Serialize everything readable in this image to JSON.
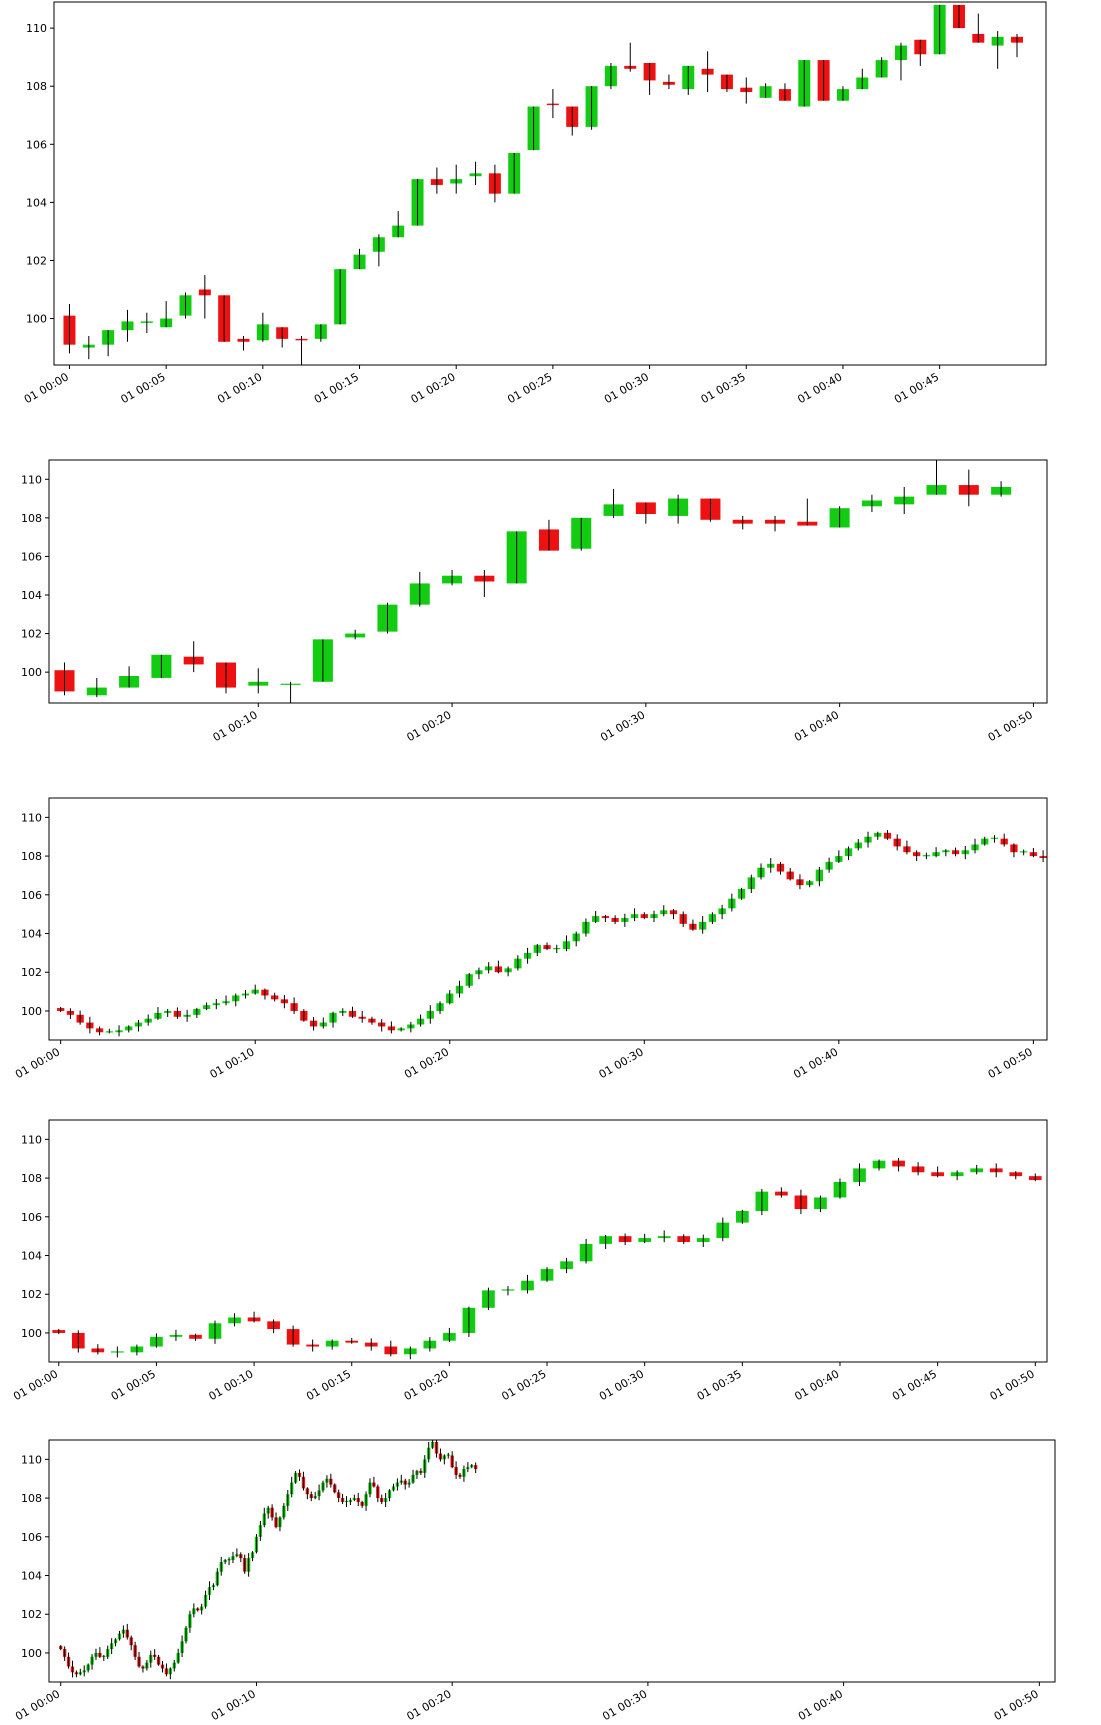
{
  "colors": {
    "up": "#11cc11",
    "down": "#ee1111",
    "wick": "#000000",
    "frame": "#000000"
  },
  "chart_data": [
    {
      "type": "candlestick",
      "interval_minutes": 1,
      "ylim": [
        98.4,
        110.9
      ],
      "yticks": [
        100,
        102,
        104,
        106,
        108,
        110
      ],
      "x_ticks": [
        "01 00:00",
        "01 00:05",
        "01 00:10",
        "01 00:15",
        "01 00:20",
        "01 00:25",
        "01 00:30",
        "01 00:35",
        "01 00:40",
        "01 00:45"
      ],
      "x_tick_minutes": [
        0,
        5,
        10,
        15,
        20,
        25,
        30,
        35,
        40,
        45
      ],
      "xlim_minutes": [
        -0.8,
        50.5
      ],
      "candles": [
        {
          "t": 0,
          "o": 100.1,
          "h": 100.5,
          "l": 98.8,
          "c": 99.1
        },
        {
          "t": 1,
          "o": 99.0,
          "h": 99.4,
          "l": 98.6,
          "c": 99.1
        },
        {
          "t": 2,
          "o": 99.1,
          "h": 99.6,
          "l": 98.7,
          "c": 99.6
        },
        {
          "t": 3,
          "o": 99.6,
          "h": 100.3,
          "l": 99.2,
          "c": 99.9
        },
        {
          "t": 4,
          "o": 99.85,
          "h": 100.2,
          "l": 99.5,
          "c": 99.9
        },
        {
          "t": 5,
          "o": 99.7,
          "h": 100.6,
          "l": 99.7,
          "c": 100.0
        },
        {
          "t": 6,
          "o": 100.1,
          "h": 100.9,
          "l": 100.0,
          "c": 100.8
        },
        {
          "t": 7,
          "o": 101.0,
          "h": 101.5,
          "l": 100.0,
          "c": 100.8
        },
        {
          "t": 8,
          "o": 100.8,
          "h": 100.8,
          "l": 99.2,
          "c": 99.2
        },
        {
          "t": 9,
          "o": 99.3,
          "h": 99.4,
          "l": 98.9,
          "c": 99.2
        },
        {
          "t": 10,
          "o": 99.25,
          "h": 100.2,
          "l": 99.2,
          "c": 99.8
        },
        {
          "t": 11,
          "o": 99.7,
          "h": 99.7,
          "l": 99.0,
          "c": 99.3
        },
        {
          "t": 12,
          "o": 99.3,
          "h": 99.4,
          "l": 98.3,
          "c": 99.25
        },
        {
          "t": 13,
          "o": 99.3,
          "h": 99.8,
          "l": 99.2,
          "c": 99.8
        },
        {
          "t": 14,
          "o": 99.8,
          "h": 101.7,
          "l": 99.8,
          "c": 101.7
        },
        {
          "t": 15,
          "o": 101.7,
          "h": 102.4,
          "l": 101.7,
          "c": 102.2
        },
        {
          "t": 16,
          "o": 102.3,
          "h": 102.9,
          "l": 101.8,
          "c": 102.8
        },
        {
          "t": 17,
          "o": 102.8,
          "h": 103.7,
          "l": 102.8,
          "c": 103.2
        },
        {
          "t": 18,
          "o": 103.2,
          "h": 104.8,
          "l": 103.2,
          "c": 104.8
        },
        {
          "t": 19,
          "o": 104.8,
          "h": 105.2,
          "l": 104.3,
          "c": 104.6
        },
        {
          "t": 20,
          "o": 104.65,
          "h": 105.3,
          "l": 104.3,
          "c": 104.8
        },
        {
          "t": 21,
          "o": 104.9,
          "h": 105.4,
          "l": 104.6,
          "c": 105.0
        },
        {
          "t": 22,
          "o": 105.0,
          "h": 105.3,
          "l": 104.0,
          "c": 104.3
        },
        {
          "t": 23,
          "o": 104.3,
          "h": 105.7,
          "l": 104.3,
          "c": 105.7
        },
        {
          "t": 24,
          "o": 105.8,
          "h": 107.3,
          "l": 105.8,
          "c": 107.3
        },
        {
          "t": 25,
          "o": 107.4,
          "h": 107.9,
          "l": 106.9,
          "c": 107.35
        },
        {
          "t": 26,
          "o": 107.3,
          "h": 107.3,
          "l": 106.3,
          "c": 106.6
        },
        {
          "t": 27,
          "o": 106.6,
          "h": 108.0,
          "l": 106.5,
          "c": 108.0
        },
        {
          "t": 28,
          "o": 108.0,
          "h": 108.8,
          "l": 107.9,
          "c": 108.7
        },
        {
          "t": 29,
          "o": 108.7,
          "h": 109.5,
          "l": 108.5,
          "c": 108.6
        },
        {
          "t": 30,
          "o": 108.8,
          "h": 108.8,
          "l": 107.7,
          "c": 108.2
        },
        {
          "t": 31,
          "o": 108.15,
          "h": 108.4,
          "l": 107.9,
          "c": 108.05
        },
        {
          "t": 32,
          "o": 107.9,
          "h": 108.7,
          "l": 107.7,
          "c": 108.7
        },
        {
          "t": 33,
          "o": 108.6,
          "h": 109.2,
          "l": 107.8,
          "c": 108.4
        },
        {
          "t": 34,
          "o": 108.4,
          "h": 108.4,
          "l": 107.8,
          "c": 107.9
        },
        {
          "t": 35,
          "o": 107.95,
          "h": 108.3,
          "l": 107.4,
          "c": 107.8
        },
        {
          "t": 36,
          "o": 107.6,
          "h": 108.1,
          "l": 107.6,
          "c": 108.0
        },
        {
          "t": 37,
          "o": 107.9,
          "h": 108.1,
          "l": 107.5,
          "c": 107.5
        },
        {
          "t": 38,
          "o": 107.3,
          "h": 108.9,
          "l": 107.3,
          "c": 108.9
        },
        {
          "t": 39,
          "o": 108.9,
          "h": 108.9,
          "l": 107.5,
          "c": 107.5
        },
        {
          "t": 40,
          "o": 107.5,
          "h": 108.0,
          "l": 107.5,
          "c": 107.9
        },
        {
          "t": 41,
          "o": 107.9,
          "h": 108.6,
          "l": 107.9,
          "c": 108.3
        },
        {
          "t": 42,
          "o": 108.3,
          "h": 109.0,
          "l": 108.3,
          "c": 108.9
        },
        {
          "t": 43,
          "o": 108.9,
          "h": 109.5,
          "l": 108.2,
          "c": 109.4
        },
        {
          "t": 44,
          "o": 109.6,
          "h": 109.6,
          "l": 108.7,
          "c": 109.1
        },
        {
          "t": 45,
          "o": 109.1,
          "h": 110.8,
          "l": 109.1,
          "c": 110.8
        },
        {
          "t": 46,
          "o": 110.8,
          "h": 110.8,
          "l": 110.0,
          "c": 110.0
        },
        {
          "t": 47,
          "o": 109.8,
          "h": 110.5,
          "l": 109.5,
          "c": 109.5
        },
        {
          "t": 48,
          "o": 109.4,
          "h": 109.9,
          "l": 108.6,
          "c": 109.7
        },
        {
          "t": 49,
          "o": 109.7,
          "h": 109.8,
          "l": 109.0,
          "c": 109.5
        }
      ]
    },
    {
      "type": "candlestick",
      "interval_minutes": 2,
      "ylim": [
        98.4,
        111.0
      ],
      "yticks": [
        100,
        102,
        104,
        106,
        108,
        110
      ],
      "x_ticks": [
        "01 00:10",
        "01 00:20",
        "01 00:30",
        "01 00:40",
        "01 00:50"
      ],
      "x_tick_minutes": [
        10,
        20,
        30,
        40,
        50
      ],
      "xlim_minutes": [
        -0.8,
        50.7
      ],
      "candles": [
        {
          "t": 1,
          "o": 100.1,
          "h": 100.5,
          "l": 98.8,
          "c": 99.0
        },
        {
          "t": 3,
          "o": 98.8,
          "h": 99.7,
          "l": 98.7,
          "c": 99.2
        },
        {
          "t": 5,
          "o": 99.2,
          "h": 100.3,
          "l": 99.2,
          "c": 99.8
        },
        {
          "t": 7,
          "o": 99.7,
          "h": 100.9,
          "l": 99.7,
          "c": 100.9
        },
        {
          "t": 9,
          "o": 100.8,
          "h": 101.6,
          "l": 100.0,
          "c": 100.4
        },
        {
          "t": 11,
          "o": 100.5,
          "h": 100.5,
          "l": 98.9,
          "c": 99.2
        },
        {
          "t": 13,
          "o": 99.3,
          "h": 100.2,
          "l": 98.9,
          "c": 99.5
        },
        {
          "t": 15,
          "o": 99.4,
          "h": 99.5,
          "l": 98.3,
          "c": 99.4
        },
        {
          "t": 17,
          "o": 99.5,
          "h": 101.7,
          "l": 99.5,
          "c": 101.7
        },
        {
          "t": 19,
          "o": 101.8,
          "h": 102.2,
          "l": 101.7,
          "c": 102.0
        },
        {
          "t": 21,
          "o": 102.1,
          "h": 103.6,
          "l": 102.0,
          "c": 103.5
        },
        {
          "t": 23,
          "o": 103.5,
          "h": 105.2,
          "l": 103.4,
          "c": 104.6
        },
        {
          "t": 25,
          "o": 104.6,
          "h": 105.3,
          "l": 104.5,
          "c": 105.0
        },
        {
          "t": 27,
          "o": 105.0,
          "h": 105.3,
          "l": 103.9,
          "c": 104.7
        },
        {
          "t": 29,
          "o": 104.6,
          "h": 107.3,
          "l": 104.6,
          "c": 107.3
        },
        {
          "t": 31,
          "o": 107.4,
          "h": 107.9,
          "l": 106.3,
          "c": 106.3
        },
        {
          "t": 33,
          "o": 106.4,
          "h": 108.0,
          "l": 106.3,
          "c": 108.0
        },
        {
          "t": 35,
          "o": 108.1,
          "h": 109.5,
          "l": 108.0,
          "c": 108.7
        },
        {
          "t": 37,
          "o": 108.8,
          "h": 108.8,
          "l": 107.7,
          "c": 108.2
        },
        {
          "t": 39,
          "o": 108.1,
          "h": 109.2,
          "l": 107.7,
          "c": 109.0
        },
        {
          "t": 41,
          "o": 109.0,
          "h": 109.0,
          "l": 107.8,
          "c": 107.9
        },
        {
          "t": 43,
          "o": 107.9,
          "h": 108.1,
          "l": 107.4,
          "c": 107.7
        },
        {
          "t": 45,
          "o": 107.9,
          "h": 108.1,
          "l": 107.3,
          "c": 107.7
        },
        {
          "t": 47,
          "o": 107.8,
          "h": 109.0,
          "l": 107.6,
          "c": 107.6
        },
        {
          "t": 49,
          "o": 107.5,
          "h": 108.6,
          "l": 107.5,
          "c": 108.5
        },
        {
          "t": 51,
          "o": 108.6,
          "h": 109.2,
          "l": 108.3,
          "c": 108.9
        },
        {
          "t": 53,
          "o": 108.7,
          "h": 109.6,
          "l": 108.2,
          "c": 109.1
        },
        {
          "t": 55,
          "o": 109.2,
          "h": 111.0,
          "l": 109.2,
          "c": 109.7
        },
        {
          "t": 57,
          "o": 109.7,
          "h": 110.5,
          "l": 108.6,
          "c": 109.2
        },
        {
          "t": 59,
          "o": 109.2,
          "h": 109.9,
          "l": 109.1,
          "c": 109.6
        }
      ],
      "time_scale": 0.8333
    },
    {
      "type": "candlestick",
      "interval_minutes": 0.5,
      "ylim": [
        98.5,
        111.0
      ],
      "yticks": [
        100,
        102,
        104,
        106,
        108,
        110
      ],
      "x_ticks": [
        "01 00:00",
        "01 00:10",
        "01 00:20",
        "01 00:30",
        "01 00:40",
        "01 00:50"
      ],
      "x_tick_minutes": [
        0,
        10,
        20,
        30,
        40,
        50
      ],
      "xlim_minutes": [
        -0.6,
        50.7
      ],
      "path": [
        100.0,
        99.8,
        99.4,
        99.1,
        98.9,
        98.9,
        99.0,
        99.2,
        99.4,
        99.6,
        99.9,
        100.0,
        99.7,
        99.8,
        100.1,
        100.3,
        100.4,
        100.5,
        100.8,
        100.9,
        101.1,
        100.8,
        100.6,
        100.4,
        100.0,
        99.5,
        99.2,
        99.4,
        99.9,
        100.0,
        99.7,
        99.6,
        99.4,
        99.2,
        99.0,
        99.1,
        99.3,
        99.6,
        100.0,
        100.4,
        100.9,
        101.3,
        101.9,
        102.1,
        102.3,
        102.0,
        102.2,
        102.7,
        103.0,
        103.4,
        103.2,
        103.2,
        103.6,
        104.0,
        104.6,
        104.9,
        104.8,
        104.6,
        104.8,
        105.0,
        104.8,
        105.0,
        105.2,
        105.0,
        104.5,
        104.2,
        104.6,
        105.0,
        105.3,
        105.8,
        106.3,
        106.9,
        107.4,
        107.6,
        107.2,
        106.8,
        106.5,
        106.7,
        107.3,
        107.7,
        108.0,
        108.4,
        108.7,
        109.0,
        109.2,
        108.9,
        108.5,
        108.2,
        108.0,
        108.0,
        108.2,
        108.3,
        108.1,
        108.3,
        108.6,
        108.9,
        108.9,
        108.6,
        108.2,
        108.2,
        108.0,
        107.9,
        107.8,
        107.8,
        107.9,
        108.0,
        107.8,
        107.6,
        107.4,
        107.8,
        108.4,
        108.8,
        108.5,
        108.0,
        107.7,
        107.8,
        108.0,
        108.3,
        108.6,
        108.8,
        108.9,
        108.9,
        108.8,
        109.0,
        109.5,
        109.8,
        109.4,
        109.1,
        109.5,
        110.2,
        110.9,
        110.6,
        110.1,
        109.8,
        110.0,
        110.3,
        110.1,
        109.7,
        109.3,
        109.5,
        109.8,
        109.7,
        109.5,
        109.5,
        109.5
      ]
    },
    {
      "type": "candlestick",
      "interval_minutes": 1,
      "ylim": [
        98.5,
        111.0
      ],
      "yticks": [
        100,
        102,
        104,
        106,
        108,
        110
      ],
      "x_ticks": [
        "01 00:00",
        "01 00:05",
        "01 00:10",
        "01 00:15",
        "01 00:20",
        "01 00:25",
        "01 00:30",
        "01 00:35",
        "01 00:40",
        "01 00:45",
        "01 00:50"
      ],
      "x_tick_minutes": [
        0,
        5,
        10,
        15,
        20,
        25,
        30,
        35,
        40,
        45,
        50
      ],
      "xlim_minutes": [
        -0.5,
        50.6
      ],
      "path": [
        100.0,
        99.2,
        99.0,
        99.0,
        99.3,
        99.8,
        99.9,
        99.7,
        100.5,
        100.8,
        100.6,
        100.2,
        99.4,
        99.3,
        99.6,
        99.5,
        99.3,
        98.9,
        99.2,
        99.6,
        100.0,
        101.3,
        102.2,
        102.2,
        102.7,
        103.3,
        103.7,
        104.6,
        105.0,
        104.7,
        104.9,
        105.0,
        104.7,
        104.9,
        105.7,
        106.3,
        107.3,
        107.1,
        106.4,
        107.0,
        107.8,
        108.5,
        108.9,
        108.6,
        108.3,
        108.1,
        108.3,
        108.5,
        108.3,
        108.1,
        107.9,
        107.7,
        107.8,
        107.9,
        107.6,
        108.0,
        108.4,
        108.1,
        107.9,
        108.3,
        108.6,
        108.6,
        108.8,
        109.0,
        109.6,
        110.5,
        110.6,
        109.9,
        110.1,
        109.2,
        109.4,
        109.5
      ]
    },
    {
      "type": "candlestick",
      "interval_minutes": 0.2,
      "ylim": [
        98.5,
        111.0
      ],
      "yticks": [
        100,
        102,
        104,
        106,
        108,
        110
      ],
      "x_ticks": [
        "01 00:00",
        "01 00:10",
        "01 00:20",
        "01 00:30",
        "01 00:40",
        "01 00:50"
      ],
      "x_tick_minutes": [
        0,
        10,
        20,
        30,
        40,
        50
      ],
      "xlim_minutes": [
        -0.6,
        50.8
      ],
      "path": [
        100.2,
        99.8,
        99.3,
        99.0,
        98.9,
        99.0,
        99.1,
        99.4,
        99.8,
        100.0,
        99.8,
        99.8,
        100.2,
        100.5,
        100.7,
        101.0,
        101.2,
        100.8,
        100.4,
        99.8,
        99.3,
        99.2,
        99.5,
        99.9,
        99.8,
        99.4,
        99.2,
        98.9,
        99.2,
        99.5,
        100.0,
        100.6,
        101.3,
        102.0,
        102.3,
        102.2,
        102.4,
        103.0,
        103.4,
        103.5,
        104.2,
        104.7,
        104.8,
        104.8,
        105.0,
        105.1,
        104.9,
        104.2,
        104.9,
        105.2,
        106.0,
        106.6,
        107.2,
        107.5,
        107.0,
        106.5,
        107.0,
        107.6,
        108.2,
        108.8,
        109.3,
        109.1,
        108.5,
        108.2,
        108.0,
        108.1,
        108.4,
        108.8,
        109.0,
        108.7,
        108.3,
        108.0,
        107.8,
        107.8,
        107.9,
        108.0,
        107.8,
        107.6,
        108.2,
        108.8,
        108.6,
        108.0,
        107.8,
        108.0,
        108.4,
        108.6,
        108.8,
        108.9,
        108.7,
        108.8,
        109.2,
        109.4,
        109.3,
        110.0,
        110.6,
        110.9,
        110.3,
        110.0,
        110.2,
        110.2,
        109.6,
        109.2,
        109.1,
        109.5,
        109.6,
        109.7,
        109.5
      ]
    }
  ]
}
